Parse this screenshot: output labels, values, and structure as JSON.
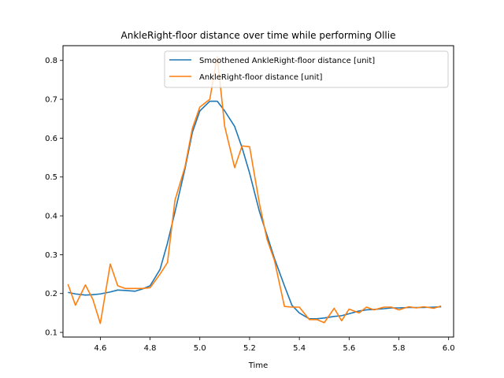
{
  "chart_data": {
    "type": "line",
    "title": "AnkleRight-floor distance over time while performing Ollie",
    "xlabel": "Time",
    "ylabel": "",
    "xlim": [
      4.45,
      6.02
    ],
    "ylim": [
      0.088,
      0.838
    ],
    "xticks": [
      "4.6",
      "4.8",
      "5.0",
      "5.2",
      "5.4",
      "5.6",
      "5.8",
      "6.0"
    ],
    "yticks": [
      "0.1",
      "0.2",
      "0.3",
      "0.4",
      "0.5",
      "0.6",
      "0.7",
      "0.8"
    ],
    "grid": false,
    "legend_position": "top-right",
    "series": [
      {
        "name": "Smoothened AnkleRight-floor distance [unit]",
        "color": "#1f77b4",
        "x": [
          4.47,
          4.5,
          4.54,
          4.57,
          4.6,
          4.64,
          4.67,
          4.7,
          4.74,
          4.77,
          4.8,
          4.84,
          4.87,
          4.9,
          4.94,
          4.97,
          5.0,
          5.04,
          5.07,
          5.1,
          5.14,
          5.17,
          5.2,
          5.24,
          5.27,
          5.3,
          5.34,
          5.37,
          5.4,
          5.44,
          5.47,
          5.5,
          5.54,
          5.57,
          5.6,
          5.64,
          5.67,
          5.7,
          5.74,
          5.77,
          5.8,
          5.84,
          5.87,
          5.9,
          5.94,
          5.97
        ],
        "y": [
          0.203,
          0.199,
          0.196,
          0.197,
          0.199,
          0.204,
          0.209,
          0.208,
          0.206,
          0.212,
          0.22,
          0.262,
          0.33,
          0.41,
          0.52,
          0.615,
          0.67,
          0.695,
          0.695,
          0.67,
          0.63,
          0.575,
          0.51,
          0.41,
          0.35,
          0.29,
          0.22,
          0.17,
          0.15,
          0.135,
          0.135,
          0.137,
          0.141,
          0.143,
          0.148,
          0.155,
          0.158,
          0.159,
          0.161,
          0.163,
          0.163,
          0.164,
          0.164,
          0.164,
          0.165,
          0.166
        ]
      },
      {
        "name": "AnkleRight-floor distance [unit]",
        "color": "#ff7f0e",
        "x": [
          4.47,
          4.5,
          4.54,
          4.57,
          4.6,
          4.64,
          4.67,
          4.7,
          4.74,
          4.77,
          4.8,
          4.84,
          4.87,
          4.9,
          4.94,
          4.97,
          5.0,
          5.04,
          5.07,
          5.1,
          5.14,
          5.17,
          5.2,
          5.24,
          5.27,
          5.3,
          5.34,
          5.37,
          5.4,
          5.44,
          5.47,
          5.5,
          5.54,
          5.57,
          5.6,
          5.64,
          5.67,
          5.7,
          5.74,
          5.77,
          5.8,
          5.84,
          5.87,
          5.9,
          5.94,
          5.97
        ],
        "y": [
          0.224,
          0.17,
          0.222,
          0.185,
          0.123,
          0.276,
          0.22,
          0.213,
          0.213,
          0.213,
          0.215,
          0.25,
          0.28,
          0.44,
          0.525,
          0.625,
          0.68,
          0.7,
          0.81,
          0.63,
          0.524,
          0.58,
          0.578,
          0.43,
          0.34,
          0.285,
          0.167,
          0.165,
          0.165,
          0.133,
          0.133,
          0.125,
          0.162,
          0.13,
          0.16,
          0.15,
          0.165,
          0.158,
          0.165,
          0.165,
          0.158,
          0.166,
          0.163,
          0.166,
          0.162,
          0.168
        ]
      }
    ]
  }
}
